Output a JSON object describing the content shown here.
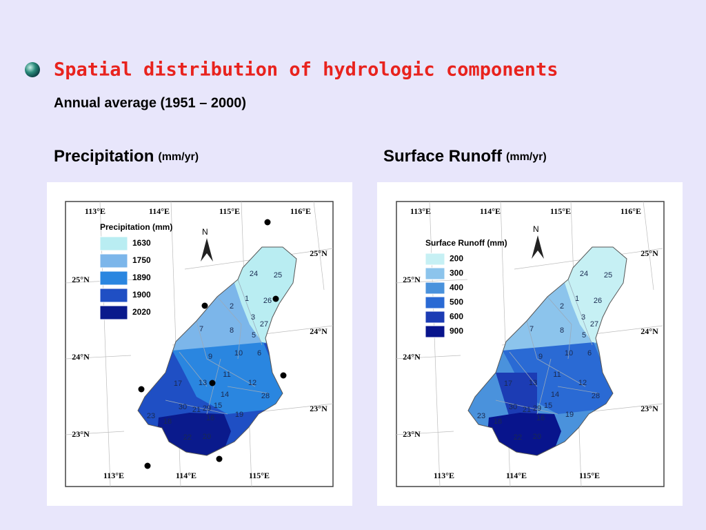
{
  "header": {
    "title": "Spatial distribution of hydrologic components",
    "subtitle": "Annual average (1951 – 2000)"
  },
  "maps": [
    {
      "title": "Precipitation",
      "unit": "(mm/yr)",
      "legend": {
        "title": "Precipitation (mm)",
        "items": [
          {
            "label": 1630,
            "color": "#b9edf2"
          },
          {
            "label": 1750,
            "color": "#7cb6ea"
          },
          {
            "label": 1890,
            "color": "#2a86e0"
          },
          {
            "label": 1900,
            "color": "#1f4fc4"
          },
          {
            "label": 2020,
            "color": "#0a1a8c"
          }
        ]
      },
      "lon_top": [
        "113°E",
        "114°E",
        "115°E",
        "116°E"
      ],
      "lon_bottom": [
        "113°E",
        "114°E",
        "115°E"
      ],
      "lat_left": [
        "25°N",
        "24°N",
        "23°N"
      ],
      "lat_right": [
        "25°N",
        "24°N",
        "23°N"
      ],
      "north": "N",
      "subbasins": [
        24,
        25,
        1,
        26,
        2,
        3,
        27,
        7,
        8,
        5,
        10,
        6,
        9,
        11,
        17,
        13,
        12,
        14,
        28,
        15,
        29,
        21,
        30,
        19,
        16,
        23,
        18,
        22,
        20
      ]
    },
    {
      "title": "Surface Runoff",
      "unit": "(mm/yr)",
      "legend": {
        "title": "Surface Runoff (mm)",
        "items": [
          {
            "label": 200,
            "color": "#c6f0f4"
          },
          {
            "label": 300,
            "color": "#8cc4ec"
          },
          {
            "label": 400,
            "color": "#4a92dc"
          },
          {
            "label": 500,
            "color": "#2a6ad4"
          },
          {
            "label": 600,
            "color": "#1c3cb4"
          },
          {
            "label": 900,
            "color": "#08148c"
          }
        ]
      },
      "lon_top": [
        "113°E",
        "114°E",
        "115°E",
        "116°E"
      ],
      "lon_bottom": [
        "113°E",
        "114°E",
        "115°E"
      ],
      "lat_left": [
        "25°N",
        "24°N",
        "23°N"
      ],
      "lat_right": [
        "25°N",
        "24°N",
        "23°N"
      ],
      "north": "N",
      "subbasins": [
        24,
        25,
        1,
        26,
        2,
        3,
        27,
        7,
        8,
        5,
        10,
        6,
        9,
        11,
        17,
        13,
        12,
        14,
        28,
        15,
        29,
        21,
        30,
        19,
        16,
        23,
        18,
        22,
        20
      ]
    }
  ]
}
